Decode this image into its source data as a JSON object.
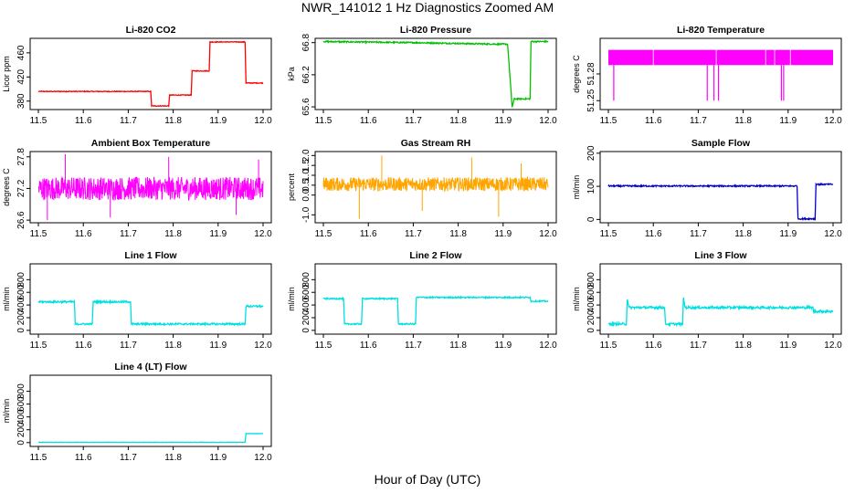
{
  "page": {
    "title": "NWR_141012  1 Hz Diagnostics Zoomed AM",
    "xlabel": "Hour of Day (UTC)"
  },
  "chart_data": [
    {
      "type": "line",
      "title": "Li-820 CO2",
      "ylabel": "Licor ppm",
      "color": "#ff0000",
      "xlim": [
        11.5,
        12.0
      ],
      "ylim": [
        366,
        484
      ],
      "yticks": [
        "380",
        "420",
        "460"
      ],
      "xticks": [
        "11.5",
        "11.6",
        "11.7",
        "11.8",
        "11.9",
        "12.0"
      ],
      "noise": 0.6,
      "series": [
        [
          11.5,
          396
        ],
        [
          11.75,
          396
        ],
        [
          11.752,
          372
        ],
        [
          11.79,
          372
        ],
        [
          11.792,
          390
        ],
        [
          11.84,
          390
        ],
        [
          11.842,
          430
        ],
        [
          11.88,
          430
        ],
        [
          11.882,
          478
        ],
        [
          11.96,
          478
        ],
        [
          11.962,
          410
        ],
        [
          12.0,
          410
        ]
      ]
    },
    {
      "type": "line",
      "title": "Li-820 Pressure",
      "ylabel": "kPa",
      "color": "#00c000",
      "xlim": [
        11.5,
        12.0
      ],
      "ylim": [
        65.55,
        66.88
      ],
      "yticks": [
        "65.6",
        "66.2",
        "66.8"
      ],
      "xticks": [
        "11.5",
        "11.6",
        "11.7",
        "11.8",
        "11.9",
        "12.0"
      ],
      "noise": 0.012,
      "series": [
        [
          11.5,
          66.82
        ],
        [
          11.7,
          66.8
        ],
        [
          11.83,
          66.78
        ],
        [
          11.91,
          66.77
        ],
        [
          11.92,
          65.6
        ],
        [
          11.925,
          65.75
        ],
        [
          11.96,
          65.75
        ],
        [
          11.962,
          66.82
        ],
        [
          12.0,
          66.82
        ]
      ]
    },
    {
      "type": "line",
      "title": "Li-820 Temperature",
      "ylabel": "degrees C",
      "color": "#ff00ff",
      "xlim": [
        11.5,
        12.0
      ],
      "ylim": [
        51.24,
        51.32
      ],
      "yticks": [
        "51.25",
        "51.28"
      ],
      "xticks": [
        "11.5",
        "11.6",
        "11.7",
        "11.8",
        "11.9",
        "12.0"
      ],
      "noise": 0,
      "series": [
        [
          11.5,
          51.295
        ],
        [
          12.0,
          51.295
        ]
      ]
    },
    {
      "type": "line",
      "title": "Ambient Box Temperature",
      "ylabel": "degrees C",
      "color": "#ff00ff",
      "xlim": [
        11.5,
        12.0
      ],
      "ylim": [
        26.55,
        27.9
      ],
      "yticks": [
        "26.6",
        "27.2",
        "27.8"
      ],
      "xticks": [
        "11.5",
        "11.6",
        "11.7",
        "11.8",
        "11.9",
        "12.0"
      ],
      "noise": 0.22,
      "series": [
        [
          11.5,
          27.2
        ],
        [
          12.0,
          27.2
        ]
      ]
    },
    {
      "type": "line",
      "title": "Gas Stream RH",
      "ylabel": "percent",
      "color": "#ffa500",
      "xlim": [
        11.5,
        12.0
      ],
      "ylim": [
        -1.4,
        2.2
      ],
      "yticks": [
        "-1.0",
        "0.0",
        "0.5",
        "1.0",
        "1.5",
        "2.0"
      ],
      "xticks": [
        "11.5",
        "11.6",
        "11.7",
        "11.8",
        "11.9",
        "12.0"
      ],
      "noise": 0.35,
      "series": [
        [
          11.5,
          0.55
        ],
        [
          12.0,
          0.55
        ]
      ]
    },
    {
      "type": "line",
      "title": "Sample Flow",
      "ylabel": "ml/min",
      "color": "#0000cc",
      "xlim": [
        11.5,
        12.0
      ],
      "ylim": [
        -10,
        205
      ],
      "yticks": [
        "0",
        "100",
        "200"
      ],
      "xticks": [
        "11.5",
        "11.6",
        "11.7",
        "11.8",
        "11.9",
        "12.0"
      ],
      "noise": 2,
      "series": [
        [
          11.5,
          101
        ],
        [
          11.92,
          101
        ],
        [
          11.922,
          2
        ],
        [
          11.96,
          2
        ],
        [
          11.962,
          106
        ],
        [
          12.0,
          106
        ]
      ]
    },
    {
      "type": "line",
      "title": "Line 1 Flow",
      "ylabel": "ml/min",
      "color": "#00e0e0",
      "xlim": [
        11.5,
        12.0
      ],
      "ylim": [
        -60,
        1050
      ],
      "yticks": [
        "0",
        "200",
        "400",
        "600",
        "800"
      ],
      "xticks": [
        "11.5",
        "11.6",
        "11.7",
        "11.8",
        "11.9",
        "12.0"
      ],
      "noise": 14,
      "series": [
        [
          11.5,
          450
        ],
        [
          11.58,
          450
        ],
        [
          11.582,
          100
        ],
        [
          11.62,
          100
        ],
        [
          11.622,
          450
        ],
        [
          11.705,
          450
        ],
        [
          11.707,
          100
        ],
        [
          11.96,
          100
        ],
        [
          11.962,
          380
        ],
        [
          12.0,
          380
        ]
      ]
    },
    {
      "type": "line",
      "title": "Line 2 Flow",
      "ylabel": "ml/min",
      "color": "#00e0e0",
      "xlim": [
        11.5,
        12.0
      ],
      "ylim": [
        -60,
        1050
      ],
      "yticks": [
        "0",
        "200",
        "400",
        "600",
        "800"
      ],
      "xticks": [
        "11.5",
        "11.6",
        "11.7",
        "11.8",
        "11.9",
        "12.0"
      ],
      "noise": 10,
      "series": [
        [
          11.5,
          500
        ],
        [
          11.545,
          500
        ],
        [
          11.547,
          100
        ],
        [
          11.585,
          100
        ],
        [
          11.587,
          500
        ],
        [
          11.665,
          500
        ],
        [
          11.667,
          100
        ],
        [
          11.705,
          100
        ],
        [
          11.707,
          520
        ],
        [
          11.96,
          520
        ],
        [
          11.962,
          460
        ],
        [
          12.0,
          460
        ]
      ]
    },
    {
      "type": "line",
      "title": "Line 3 Flow",
      "ylabel": "ml/min",
      "color": "#00e0e0",
      "xlim": [
        11.5,
        12.0
      ],
      "ylim": [
        -60,
        1050
      ],
      "yticks": [
        "0",
        "200",
        "400",
        "600",
        "800"
      ],
      "xticks": [
        "11.5",
        "11.6",
        "11.7",
        "11.8",
        "11.9",
        "12.0"
      ],
      "noise": 18,
      "series": [
        [
          11.5,
          100
        ],
        [
          11.54,
          100
        ],
        [
          11.542,
          500
        ],
        [
          11.546,
          360
        ],
        [
          11.625,
          360
        ],
        [
          11.627,
          100
        ],
        [
          11.665,
          100
        ],
        [
          11.667,
          500
        ],
        [
          11.671,
          360
        ],
        [
          11.955,
          360
        ],
        [
          11.957,
          300
        ],
        [
          12.0,
          300
        ]
      ]
    },
    {
      "type": "line",
      "title": "Line 4 (LT) Flow",
      "ylabel": "ml/min",
      "color": "#00e0e0",
      "xlim": [
        11.5,
        12.0
      ],
      "ylim": [
        -60,
        1050
      ],
      "yticks": [
        "0",
        "200",
        "400",
        "600",
        "800"
      ],
      "xticks": [
        "11.5",
        "11.6",
        "11.7",
        "11.8",
        "11.9",
        "12.0"
      ],
      "noise": 2,
      "series": [
        [
          11.5,
          5
        ],
        [
          11.96,
          5
        ],
        [
          11.962,
          140
        ],
        [
          12.0,
          140
        ]
      ]
    }
  ]
}
